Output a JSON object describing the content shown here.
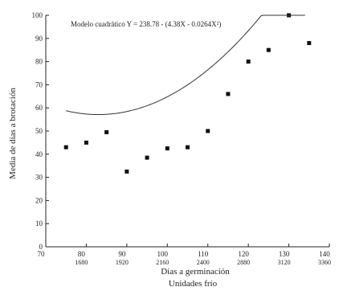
{
  "chart_data": {
    "type": "scatter",
    "title": "",
    "annotation": "Modelo cuadrático  Y = 238.78 - (4.38X - 0.0264X²)",
    "ylabel": "Media de días a brotación",
    "xlabel": "Días a germinación",
    "xlabel2": "Unidades frío",
    "xlim": [
      70,
      140
    ],
    "ylim": [
      0,
      100
    ],
    "xticks": [
      "70",
      "80",
      "90",
      "100",
      "110",
      "120",
      "130",
      "140"
    ],
    "xticks_secondary": [
      "",
      "1680",
      "1920",
      "2160",
      "2400",
      "2880",
      "3120",
      "3360"
    ],
    "yticks": [
      "0",
      "10",
      "20",
      "30",
      "40",
      "50",
      "60",
      "70",
      "80",
      "90",
      "100"
    ],
    "grid": false,
    "series": [
      {
        "points": [
          {
            "x": 75,
            "y": 43
          },
          {
            "x": 80,
            "y": 45
          },
          {
            "x": 85,
            "y": 49.5
          },
          {
            "x": 90,
            "y": 32.5
          },
          {
            "x": 95,
            "y": 38.5
          },
          {
            "x": 100,
            "y": 42.5
          },
          {
            "x": 105,
            "y": 43
          },
          {
            "x": 110,
            "y": 50
          },
          {
            "x": 115,
            "y": 66
          },
          {
            "x": 120,
            "y": 80
          },
          {
            "x": 125,
            "y": 85
          },
          {
            "x": 130,
            "y": 100
          },
          {
            "x": 135,
            "y": 88
          }
        ]
      }
    ],
    "fit": {
      "model": "quadratic",
      "x_range": [
        75,
        134
      ],
      "coefficients": {
        "a": 238.78,
        "b": -4.38,
        "c": 0.0264
      }
    }
  }
}
